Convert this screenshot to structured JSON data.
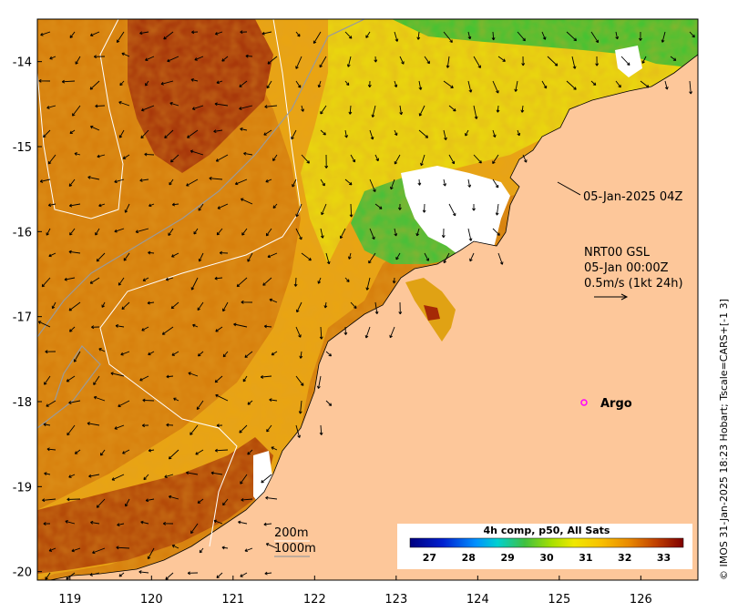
{
  "map": {
    "x_ticks": [
      "119",
      "120",
      "121",
      "122",
      "123",
      "124",
      "125",
      "126"
    ],
    "y_ticks": [
      "-14",
      "-15",
      "-16",
      "-17",
      "-18",
      "-19",
      "-20"
    ],
    "lon_range": [
      118.6,
      126.7
    ],
    "lat_range": [
      -20.1,
      -13.5
    ]
  },
  "annotations": {
    "pass_time": "05-Jan-2025 04Z",
    "current_title": "NRT00 GSL",
    "current_date": "05-Jan 00:00Z",
    "current_scale": "0.5m/s (1kt 24h)",
    "argo_label": "Argo",
    "contour_200": "200m",
    "contour_1000": "1000m"
  },
  "colorbar": {
    "title": "4h comp, p50, All Sats",
    "ticks": [
      "27",
      "28",
      "29",
      "30",
      "31",
      "32",
      "33"
    ],
    "range": [
      26.5,
      33.5
    ]
  },
  "credit": "© IMOS 31-Jan-2025 18:23 Hobart; Tscale=CARS+[-1 3]",
  "colors": {
    "land": "#fdc79a",
    "sst_warm": "#c96a08",
    "sst_hot": "#9b2a06",
    "sst_mid": "#e9a311",
    "sst_cool": "#e8e20e",
    "sst_green": "#3cbe2a",
    "cloud": "#ffffff",
    "argo_marker": "#ff00ff"
  }
}
